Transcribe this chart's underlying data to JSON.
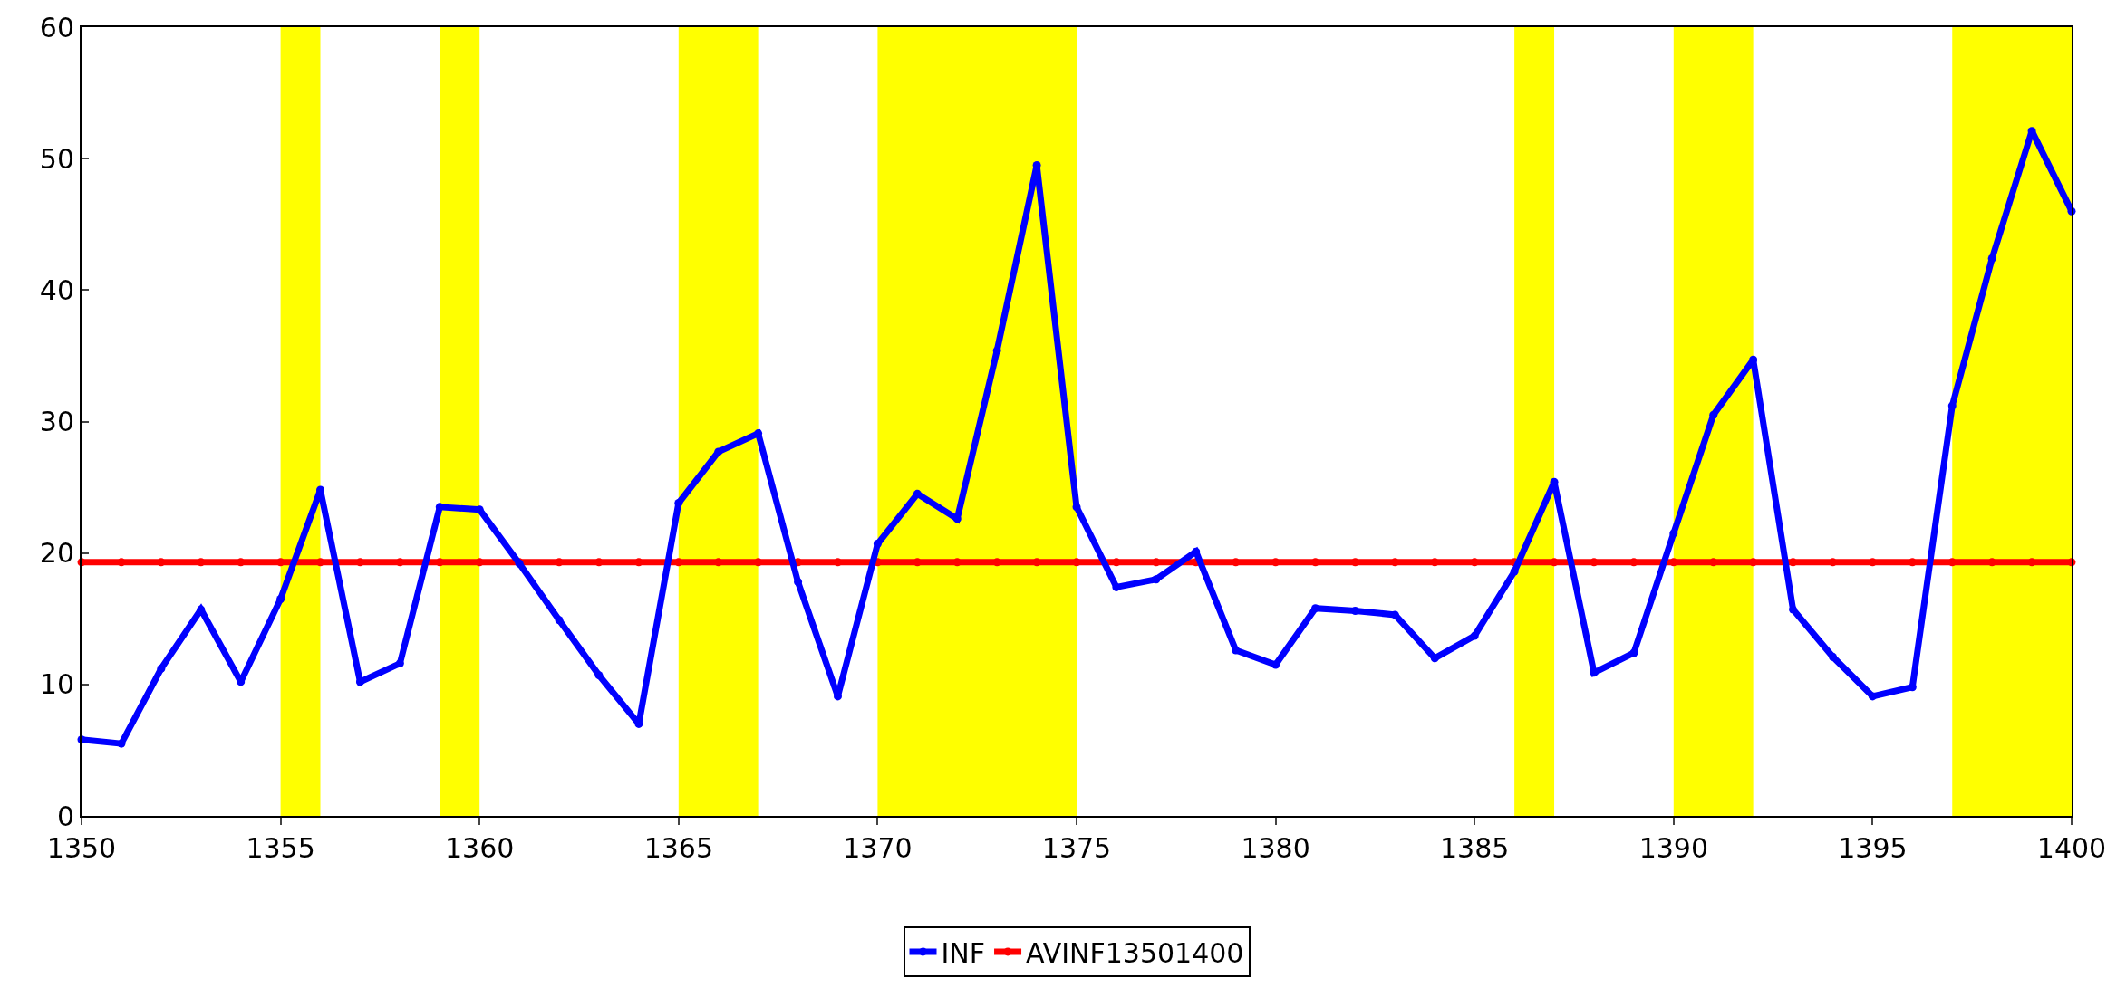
{
  "chart_data": {
    "type": "line",
    "x": [
      1350,
      1351,
      1352,
      1353,
      1354,
      1355,
      1356,
      1357,
      1358,
      1359,
      1360,
      1361,
      1362,
      1363,
      1364,
      1365,
      1366,
      1367,
      1368,
      1369,
      1370,
      1371,
      1372,
      1373,
      1374,
      1375,
      1376,
      1377,
      1378,
      1379,
      1380,
      1381,
      1382,
      1383,
      1384,
      1385,
      1386,
      1387,
      1388,
      1389,
      1390,
      1391,
      1392,
      1393,
      1394,
      1395,
      1396,
      1397,
      1398,
      1399,
      1400
    ],
    "series": [
      {
        "name": "INF",
        "color": "#0000ff",
        "values": [
          5.8,
          5.5,
          11.2,
          15.7,
          10.2,
          16.5,
          24.8,
          10.2,
          11.6,
          23.5,
          23.3,
          19.2,
          14.9,
          10.7,
          7.0,
          23.8,
          27.7,
          29.1,
          17.8,
          9.1,
          20.7,
          24.5,
          22.6,
          35.4,
          49.5,
          23.5,
          17.4,
          18.0,
          20.1,
          12.6,
          11.5,
          15.8,
          15.6,
          15.3,
          12.0,
          13.7,
          18.6,
          25.4,
          10.9,
          12.4,
          21.5,
          30.5,
          34.7,
          15.7,
          12.1,
          9.1,
          9.8,
          31.2,
          42.4,
          52.1,
          46.0
        ]
      },
      {
        "name": "AVINF13501400",
        "color": "#ff0000",
        "values": [
          19.3,
          19.3,
          19.3,
          19.3,
          19.3,
          19.3,
          19.3,
          19.3,
          19.3,
          19.3,
          19.3,
          19.3,
          19.3,
          19.3,
          19.3,
          19.3,
          19.3,
          19.3,
          19.3,
          19.3,
          19.3,
          19.3,
          19.3,
          19.3,
          19.3,
          19.3,
          19.3,
          19.3,
          19.3,
          19.3,
          19.3,
          19.3,
          19.3,
          19.3,
          19.3,
          19.3,
          19.3,
          19.3,
          19.3,
          19.3,
          19.3,
          19.3,
          19.3,
          19.3,
          19.3,
          19.3,
          19.3,
          19.3,
          19.3,
          19.3,
          19.3
        ]
      }
    ],
    "bands": [
      {
        "axis": "x",
        "from": 1355,
        "to": 1356,
        "color": "#ffff00"
      },
      {
        "axis": "x",
        "from": 1359,
        "to": 1360,
        "color": "#ffff00"
      },
      {
        "axis": "x",
        "from": 1365,
        "to": 1367,
        "color": "#ffff00"
      },
      {
        "axis": "x",
        "from": 1370,
        "to": 1375,
        "color": "#ffff00"
      },
      {
        "axis": "x",
        "from": 1386,
        "to": 1387,
        "color": "#ffff00"
      },
      {
        "axis": "x",
        "from": 1390,
        "to": 1392,
        "color": "#ffff00"
      },
      {
        "axis": "x",
        "from": 1397,
        "to": 1400,
        "color": "#ffff00"
      }
    ],
    "xlim": [
      1350,
      1400
    ],
    "xticks": [
      1350,
      1355,
      1360,
      1365,
      1370,
      1375,
      1380,
      1385,
      1390,
      1395,
      1400
    ],
    "ylim": [
      0,
      60
    ],
    "yticks": [
      0,
      10,
      20,
      30,
      40,
      50,
      60
    ],
    "grid": false,
    "legend": "bottom",
    "marker": "circle",
    "line_style": "solid"
  }
}
